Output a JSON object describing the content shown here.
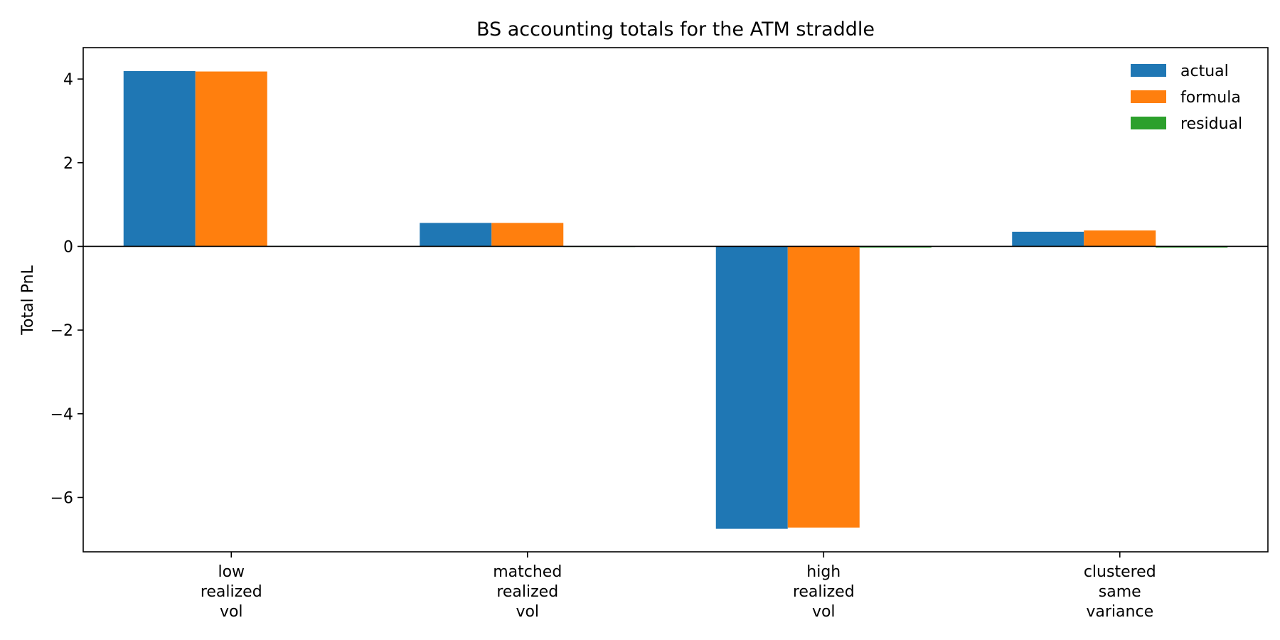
{
  "chart_data": {
    "type": "bar",
    "title": "BS accounting totals for the ATM straddle",
    "xlabel": "",
    "ylabel": "Total PnL",
    "categories": [
      [
        "low",
        "realized",
        "vol"
      ],
      [
        "matched",
        "realized",
        "vol"
      ],
      [
        "high",
        "realized",
        "vol"
      ],
      [
        "clustered",
        "same",
        "variance"
      ]
    ],
    "series": [
      {
        "name": "actual",
        "color": "#1f77b4",
        "values": [
          4.19,
          0.56,
          -6.75,
          0.35
        ]
      },
      {
        "name": "formula",
        "color": "#ff7f0e",
        "values": [
          4.18,
          0.56,
          -6.72,
          0.38
        ]
      },
      {
        "name": "residual",
        "color": "#2ca02c",
        "values": [
          0.01,
          0.0,
          -0.03,
          -0.03
        ]
      }
    ],
    "ylim": [
      -7.3,
      4.75
    ],
    "yticks": [
      4,
      2,
      0,
      -2,
      -4,
      -6
    ],
    "ytick_labels": [
      "4",
      "2",
      "0",
      "−2",
      "−4",
      "−6"
    ],
    "grid": false,
    "zero_line": true,
    "legend_position": "top-right"
  }
}
